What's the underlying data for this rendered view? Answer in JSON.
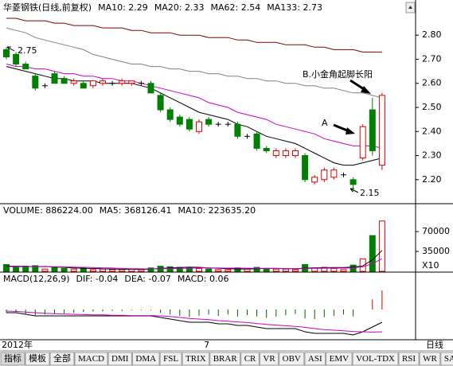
{
  "chart_data": [
    {
      "type": "candlestick",
      "title": "华菱钢铁(日线,前复权)",
      "categories": [
        "2012年",
        null,
        null,
        null,
        null,
        null,
        null,
        null,
        null,
        null,
        null,
        null,
        null,
        null,
        null,
        null,
        null,
        null,
        null,
        null,
        null,
        "7",
        null,
        null,
        null,
        null,
        null,
        null,
        null,
        null,
        null,
        null,
        null,
        null,
        null,
        null,
        null,
        null,
        null,
        null
      ],
      "open": [
        2.74,
        2.72,
        2.68,
        2.63,
        2.59,
        2.64,
        2.62,
        2.6,
        2.6,
        2.59,
        2.6,
        2.6,
        2.6,
        2.6,
        2.6,
        2.6,
        2.55,
        2.49,
        2.46,
        2.45,
        2.4,
        2.45,
        2.43,
        2.43,
        2.43,
        2.38,
        2.39,
        2.33,
        2.3,
        2.3,
        2.3,
        2.3,
        2.19,
        2.2,
        2.21,
        2.22,
        2.2,
        2.29,
        2.49,
        2.26
      ],
      "high": [
        2.75,
        2.73,
        2.69,
        2.64,
        2.6,
        2.65,
        2.63,
        2.62,
        2.61,
        2.61,
        2.62,
        2.61,
        2.62,
        2.61,
        2.61,
        2.61,
        2.56,
        2.5,
        2.47,
        2.46,
        2.45,
        2.46,
        2.44,
        2.44,
        2.44,
        2.39,
        2.4,
        2.34,
        2.33,
        2.33,
        2.33,
        2.31,
        2.22,
        2.25,
        2.25,
        2.23,
        2.21,
        2.43,
        2.54,
        2.56
      ],
      "low": [
        2.7,
        2.67,
        2.66,
        2.57,
        2.58,
        2.6,
        2.6,
        2.59,
        2.58,
        2.58,
        2.59,
        2.59,
        2.59,
        2.59,
        2.59,
        2.56,
        2.48,
        2.44,
        2.42,
        2.4,
        2.39,
        2.42,
        2.42,
        2.42,
        2.37,
        2.37,
        2.32,
        2.31,
        2.29,
        2.29,
        2.29,
        2.19,
        2.18,
        2.19,
        2.2,
        2.21,
        2.15,
        2.28,
        2.3,
        2.24
      ],
      "close": [
        2.71,
        2.68,
        2.66,
        2.58,
        2.59,
        2.6,
        2.6,
        2.61,
        2.58,
        2.61,
        2.61,
        2.6,
        2.61,
        2.61,
        2.6,
        2.56,
        2.49,
        2.45,
        2.43,
        2.41,
        2.44,
        2.43,
        2.43,
        2.43,
        2.38,
        2.38,
        2.33,
        2.32,
        2.32,
        2.32,
        2.32,
        2.2,
        2.21,
        2.24,
        2.24,
        2.22,
        2.18,
        2.42,
        2.32,
        2.55
      ],
      "up_color": "#e00000",
      "down_color": "#008000",
      "ylim": [
        2.12,
        2.88
      ],
      "yticks": [
        {
          "value": 2.2,
          "label": "2.20"
        },
        {
          "value": 2.3,
          "label": "2.30"
        },
        {
          "value": 2.4,
          "label": "2.40"
        },
        {
          "value": 2.5,
          "label": "2.50"
        },
        {
          "value": 2.6,
          "label": "2.60"
        },
        {
          "value": 2.7,
          "label": "2.70"
        },
        {
          "value": 2.8,
          "label": "2.80"
        }
      ],
      "series": [
        {
          "name": "MA10: 2.29",
          "color": "#000000",
          "values": [
            2.67,
            2.66,
            2.65,
            2.64,
            2.63,
            2.62,
            2.62,
            2.61,
            2.61,
            2.61,
            2.6,
            2.6,
            2.6,
            2.6,
            2.59,
            2.58,
            2.56,
            2.54,
            2.52,
            2.5,
            2.48,
            2.47,
            2.46,
            2.45,
            2.43,
            2.42,
            2.4,
            2.38,
            2.37,
            2.36,
            2.35,
            2.33,
            2.31,
            2.29,
            2.27,
            2.26,
            2.26,
            2.27,
            2.28,
            2.29
          ]
        },
        {
          "name": "MA20: 2.33",
          "color": "#cc00cc",
          "values": [
            2.68,
            2.67,
            2.67,
            2.66,
            2.66,
            2.65,
            2.64,
            2.64,
            2.63,
            2.63,
            2.62,
            2.62,
            2.61,
            2.61,
            2.6,
            2.59,
            2.58,
            2.57,
            2.56,
            2.55,
            2.54,
            2.52,
            2.51,
            2.5,
            2.48,
            2.47,
            2.46,
            2.45,
            2.43,
            2.42,
            2.41,
            2.4,
            2.39,
            2.37,
            2.36,
            2.35,
            2.34,
            2.34,
            2.34,
            2.33
          ]
        },
        {
          "name": "MA62: 2.54",
          "color": "#808080",
          "values": [
            2.83,
            2.82,
            2.81,
            2.79,
            2.78,
            2.77,
            2.76,
            2.75,
            2.74,
            2.72,
            2.71,
            2.7,
            2.69,
            2.68,
            2.68,
            2.67,
            2.67,
            2.66,
            2.66,
            2.65,
            2.65,
            2.64,
            2.64,
            2.63,
            2.63,
            2.62,
            2.62,
            2.61,
            2.61,
            2.6,
            2.6,
            2.59,
            2.59,
            2.58,
            2.58,
            2.57,
            2.56,
            2.56,
            2.55,
            2.54
          ]
        },
        {
          "name": "MA133: 2.73",
          "color": "#800000",
          "values": [
            2.87,
            2.87,
            2.86,
            2.86,
            2.86,
            2.85,
            2.85,
            2.84,
            2.84,
            2.84,
            2.83,
            2.83,
            2.83,
            2.82,
            2.82,
            2.81,
            2.81,
            2.81,
            2.8,
            2.8,
            2.8,
            2.79,
            2.79,
            2.79,
            2.78,
            2.78,
            2.77,
            2.77,
            2.77,
            2.76,
            2.76,
            2.76,
            2.75,
            2.75,
            2.74,
            2.74,
            2.74,
            2.73,
            2.73,
            2.73
          ]
        }
      ],
      "annotations": [
        "2.75",
        "2.15",
        "A",
        "B.小金角起脚长阳"
      ]
    },
    {
      "type": "volume",
      "title": "VOLUME: 886224.00",
      "values": [
        12000,
        8000,
        9000,
        10000,
        4000,
        7000,
        5000,
        4000,
        6000,
        3000,
        4000,
        3000,
        3000,
        4000,
        3000,
        6000,
        9000,
        8000,
        7000,
        6000,
        5000,
        4000,
        3000,
        3000,
        6000,
        4000,
        7000,
        5000,
        4000,
        4000,
        3000,
        12000,
        6000,
        7000,
        5000,
        3000,
        11000,
        22000,
        63000,
        88622.4
      ],
      "ylim": [
        0,
        115000
      ],
      "yticks": [
        35000,
        70000
      ],
      "unit_label": "X10",
      "series": [
        {
          "name": "MA5: 368126.41",
          "color": "#000000",
          "values": [
            9000,
            9000,
            8500,
            8000,
            8500,
            7600,
            7000,
            6000,
            5200,
            5000,
            4400,
            4000,
            3600,
            3600,
            3400,
            3800,
            5000,
            6000,
            6600,
            7400,
            7000,
            6000,
            5400,
            4600,
            4200,
            4000,
            4600,
            5000,
            5200,
            4800,
            4600,
            5600,
            6000,
            6400,
            6600,
            6600,
            7600,
            9600,
            20400,
            36812.641
          ]
        },
        {
          "name": "MA10: 223635.20",
          "color": "#cc00cc",
          "values": [
            8000,
            8000,
            8000,
            8000,
            8000,
            8000,
            7800,
            7500,
            7000,
            6800,
            6200,
            5700,
            5100,
            4600,
            4300,
            4100,
            4500,
            4800,
            5100,
            5500,
            6000,
            6000,
            6000,
            5600,
            5800,
            5500,
            5300,
            5200,
            4900,
            4500,
            4400,
            4800,
            5200,
            5500,
            5700,
            5600,
            6100,
            7800,
            13500,
            22363.52
          ]
        }
      ]
    },
    {
      "type": "macd",
      "title": "MACD(12,26,9)",
      "ylim": [
        -0.09,
        0.11
      ],
      "up_color": "#e00000",
      "down_color": "#006400",
      "series": [
        {
          "name": "DIF: -0.04",
          "color": "#000000",
          "values": [
            -0.01,
            -0.01,
            -0.015,
            -0.02,
            -0.02,
            -0.02,
            -0.02,
            -0.02,
            -0.02,
            -0.02,
            -0.02,
            -0.02,
            -0.02,
            -0.02,
            -0.02,
            -0.02,
            -0.025,
            -0.03,
            -0.035,
            -0.04,
            -0.04,
            -0.04,
            -0.045,
            -0.045,
            -0.05,
            -0.05,
            -0.055,
            -0.06,
            -0.06,
            -0.06,
            -0.06,
            -0.07,
            -0.075,
            -0.075,
            -0.075,
            -0.075,
            -0.08,
            -0.07,
            -0.055,
            -0.04
          ]
        },
        {
          "name": "DEA: -0.07",
          "color": "#cc00cc",
          "values": [
            -0.005,
            -0.006,
            -0.008,
            -0.01,
            -0.012,
            -0.013,
            -0.014,
            -0.015,
            -0.016,
            -0.017,
            -0.017,
            -0.018,
            -0.018,
            -0.019,
            -0.019,
            -0.019,
            -0.02,
            -0.022,
            -0.025,
            -0.028,
            -0.03,
            -0.032,
            -0.035,
            -0.037,
            -0.039,
            -0.041,
            -0.044,
            -0.047,
            -0.049,
            -0.051,
            -0.053,
            -0.056,
            -0.06,
            -0.063,
            -0.065,
            -0.067,
            -0.069,
            -0.07,
            -0.071,
            -0.07
          ]
        },
        {
          "name": "MACD: 0.06",
          "color": "#808080",
          "style": "bar",
          "values": [
            -0.01,
            -0.008,
            -0.014,
            -0.02,
            -0.016,
            -0.014,
            -0.012,
            -0.01,
            -0.008,
            -0.006,
            -0.006,
            -0.004,
            -0.004,
            -0.002,
            -0.002,
            -0.002,
            -0.01,
            -0.016,
            -0.02,
            -0.024,
            -0.02,
            -0.016,
            -0.02,
            -0.016,
            -0.022,
            -0.018,
            -0.022,
            -0.026,
            -0.022,
            -0.018,
            -0.014,
            -0.028,
            -0.03,
            -0.024,
            -0.02,
            -0.016,
            -0.022,
            0.0,
            0.032,
            0.06
          ]
        }
      ]
    }
  ],
  "period_button": "日线",
  "tabs": [
    "指标",
    "模板",
    "全部",
    "MACD",
    "DMI",
    "DMA",
    "FSL",
    "TRIX",
    "BRAR",
    "CR",
    "VR",
    "OBV",
    "ASI",
    "EMV",
    "VOL-TDX",
    "RSI",
    "WR",
    "SAR"
  ],
  "selected_tab": "MACD"
}
